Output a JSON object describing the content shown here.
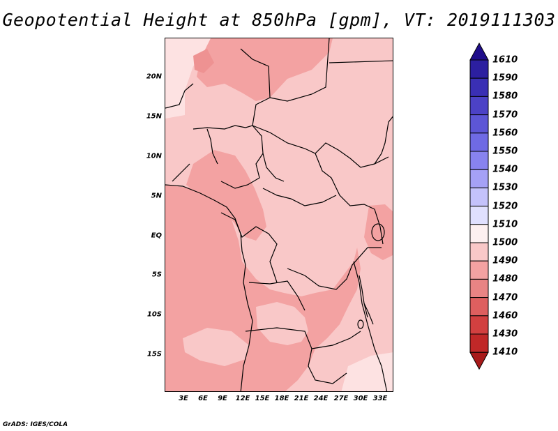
{
  "title": "Geopotential Height at 850hPa [gpm], VT: 2019111303",
  "credit": "GrADS: IGES/COLA",
  "lat_labels": [
    "20N",
    "15N",
    "10N",
    "5N",
    "EQ",
    "5S",
    "10S",
    "15S"
  ],
  "lon_labels": [
    "3E",
    "6E",
    "9E",
    "12E",
    "15E",
    "18E",
    "21E",
    "24E",
    "27E",
    "30E",
    "33E"
  ],
  "colorbar": {
    "levels": [
      "1610",
      "1590",
      "1580",
      "1570",
      "1560",
      "1550",
      "1540",
      "1530",
      "1520",
      "1510",
      "1500",
      "1490",
      "1480",
      "1470",
      "1460",
      "1430",
      "1410"
    ],
    "colors": [
      "#1f0d8a",
      "#2c1fa0",
      "#3a2fb4",
      "#4c42c6",
      "#5d56d6",
      "#6f6ae4",
      "#8883ef",
      "#a5a1f6",
      "#c4c2fb",
      "#e0e0fe",
      "#fdf0f0",
      "#f9c8c8",
      "#f3a2a2",
      "#e88484",
      "#de5f5f",
      "#d24040",
      "#c02828",
      "#a81a1a"
    ]
  },
  "field_colors": {
    "lightest": "#fde2e2",
    "light": "#f9c8c8",
    "medium": "#f3a2a2",
    "dark": "#ee9292"
  }
}
